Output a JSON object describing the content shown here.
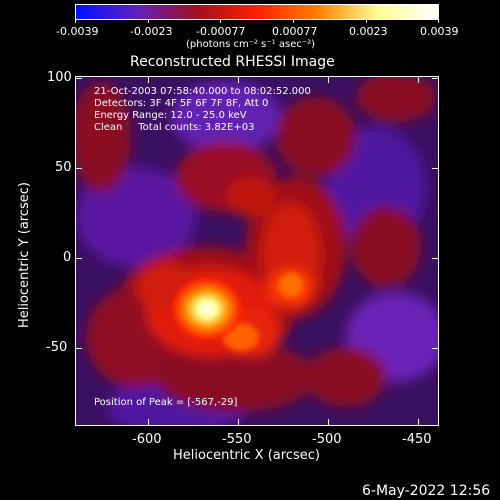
{
  "colorbar": {
    "tick_labels": [
      "-0.0039",
      "-0.0023",
      "-0.00077",
      "0.00077",
      "0.0023",
      "0.0039"
    ],
    "unit_label": "(photons cm⁻² s⁻¹ asec⁻²)",
    "colors": [
      "#0010ff",
      "#6020c0",
      "#a01020",
      "#ff2000",
      "#ff8000",
      "#ffff90",
      "#ffffff"
    ]
  },
  "title": "Reconstructed RHESSI Image",
  "info": {
    "line1": "21-Oct-2003 07:58:40.000 to 08:02:52.000",
    "line2": "Detectors: 3F 4F 5F 6F 7F 8F, Att 0",
    "line3": "Energy Range: 12.0 - 25.0 keV",
    "line4": "Clean     Total counts: 3.82E+03",
    "peak": "Position of Peak = [-567,-29]"
  },
  "axes": {
    "xlabel": "Heliocentric X (arcsec)",
    "ylabel": "Heliocentric Y (arcsec)",
    "x_ticks": [
      "-600",
      "-550",
      "-500",
      "-450"
    ],
    "y_ticks": [
      "100",
      "50",
      "0",
      "-50"
    ]
  },
  "timestamp": "6-May-2022 12:56"
}
